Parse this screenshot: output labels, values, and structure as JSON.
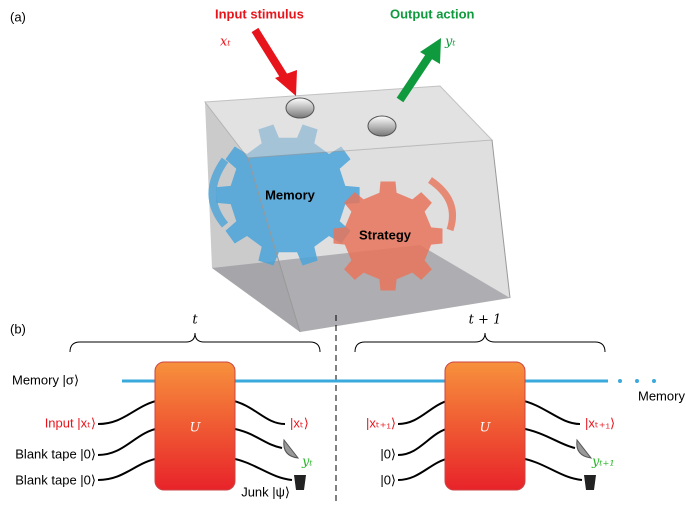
{
  "panel_a": {
    "label": "(a)",
    "input_label": "Input stimulus",
    "input_symbol": "xₜ",
    "output_label": "Output action",
    "output_symbol": "yₜ",
    "gear_memory": "Memory",
    "gear_strategy": "Strategy"
  },
  "panel_b": {
    "label": "(b)",
    "step1": {
      "time": "t",
      "gate": "U",
      "inputs": [
        "Memory |σ⟩",
        "Input |xₜ⟩",
        "Blank tape |0⟩",
        "Blank tape |0⟩"
      ],
      "outputs": [
        "|xₜ⟩",
        "yₜ",
        "Junk |ψ⟩"
      ]
    },
    "step2": {
      "time": "t + 1",
      "gate": "U",
      "inputs": [
        "|xₜ₊₁⟩",
        "|0⟩",
        "|0⟩"
      ],
      "outputs": [
        "|xₜ₊₁⟩",
        "yₜ₊₁"
      ]
    },
    "memory_out": "Memory"
  }
}
